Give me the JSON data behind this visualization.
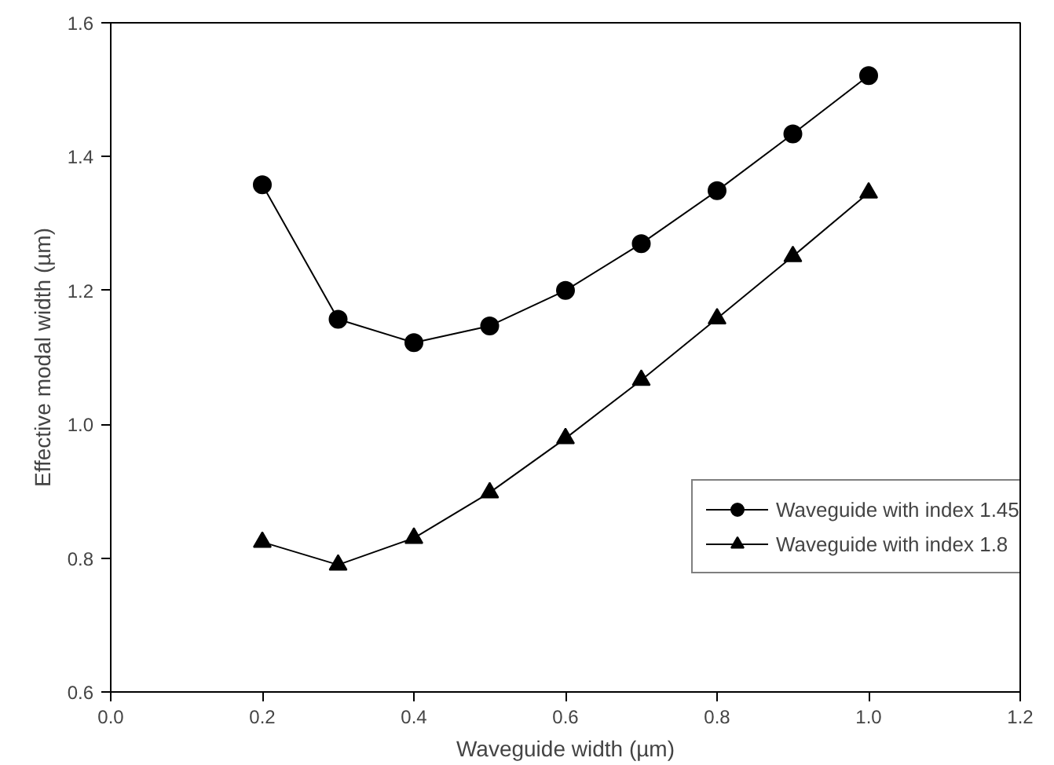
{
  "chart_data": {
    "type": "line",
    "xlabel": "Waveguide width (µm)",
    "ylabel": "Effective modal width (µm)",
    "x": [
      0.2,
      0.3,
      0.4,
      0.5,
      0.6,
      0.7,
      0.8,
      0.9,
      1.0
    ],
    "series": [
      {
        "name": "Waveguide with index 1.45",
        "color": "#000000",
        "marker": "circle",
        "values": [
          1.358,
          1.157,
          1.122,
          1.147,
          1.2,
          1.27,
          1.349,
          1.434,
          1.521
        ]
      },
      {
        "name": "Waveguide with index 1.8",
        "color": "#000000",
        "marker": "triangle",
        "values": [
          0.824,
          0.79,
          0.83,
          0.898,
          0.979,
          1.066,
          1.158,
          1.251,
          1.346
        ]
      }
    ],
    "xlim": [
      0.0,
      1.2
    ],
    "xticks": [
      {
        "value": 0.0,
        "label": "0.0"
      },
      0.2,
      0.4,
      0.6,
      0.8,
      {
        "value": 1.0,
        "label": "1.0"
      },
      1.2
    ],
    "ylim": [
      0.6,
      1.6
    ],
    "yticks": [
      0.6,
      0.8,
      {
        "value": 1.0,
        "label": "1.0"
      },
      1.2,
      1.4,
      1.6
    ],
    "grid": false,
    "legend": "bottom right",
    "line_style": "solid"
  }
}
